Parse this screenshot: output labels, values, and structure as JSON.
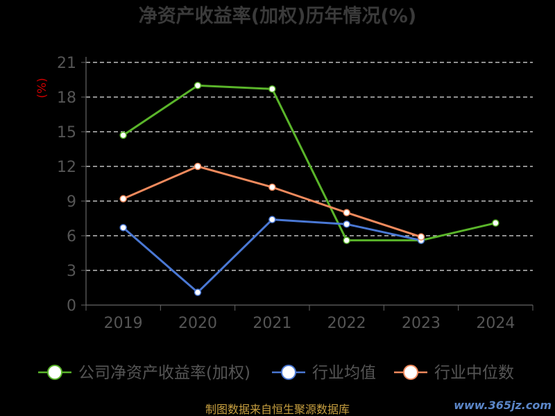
{
  "chart_data": {
    "type": "line",
    "title": "净资产收益率(加权)历年情况(%)",
    "ylabel": "(%)",
    "categories": [
      "2019",
      "2020",
      "2021",
      "2022",
      "2023",
      "2024"
    ],
    "ylim": [
      0,
      21
    ],
    "yticks": [
      "0",
      "3",
      "6",
      "9",
      "12",
      "15",
      "18",
      "21"
    ],
    "grid": true,
    "legend_position": "bottom",
    "series": [
      {
        "name": "公司净资产收益率(加权)",
        "color": "#5ab52a",
        "values": [
          14.7,
          19.0,
          18.7,
          5.6,
          5.6,
          7.1
        ]
      },
      {
        "name": "行业均值",
        "color": "#4a78d4",
        "values": [
          6.7,
          1.1,
          7.4,
          7.0,
          5.6,
          null
        ]
      },
      {
        "name": "行业中位数",
        "color": "#f08a5d",
        "values": [
          9.2,
          12.0,
          10.2,
          8.0,
          5.9,
          null
        ]
      }
    ]
  },
  "footer": {
    "source": "制图数据来自恒生聚源数据库",
    "watermark": "www.365jz.com"
  }
}
